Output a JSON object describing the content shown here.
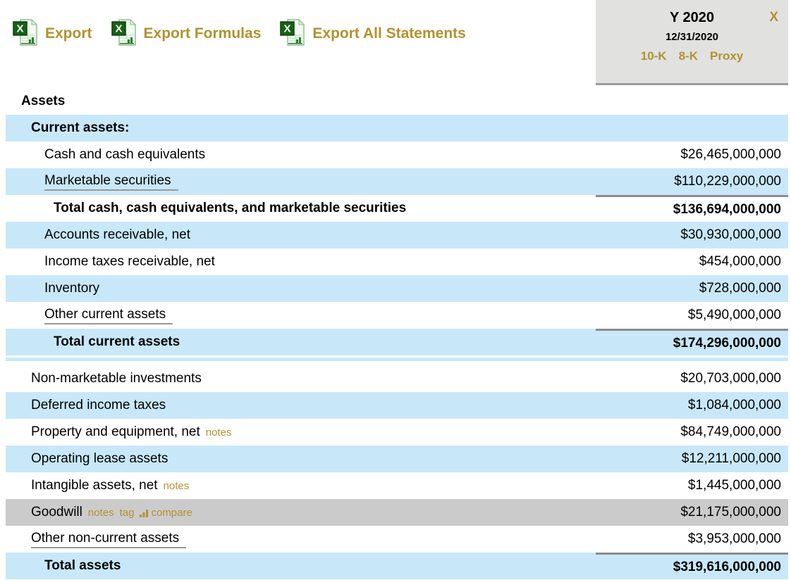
{
  "toolbar": {
    "export": "Export",
    "export_formulas": "Export Formulas",
    "export_all": "Export All Statements"
  },
  "column_header": {
    "period": "Y 2020",
    "close": "X",
    "date": "12/31/2020",
    "filings": {
      "f10k": "10-K",
      "f8k": "8-K",
      "proxy": "Proxy"
    }
  },
  "colors": {
    "stripe_blue": "#C8E8F9",
    "highlight_gray": "#CBCBCB",
    "link_gold": "#B2922F",
    "header_bg": "#E1E1E0",
    "total_border": "#8C8C8C"
  },
  "statement": {
    "rows": [
      {
        "label": "Assets",
        "value": "",
        "bold": true,
        "bg": "white",
        "indent": 0
      },
      {
        "label": "Current assets:",
        "value": "",
        "bold": true,
        "bg": "blue",
        "indent": 1
      },
      {
        "label": "Cash and cash equivalents",
        "value": "$26,465,000,000",
        "bg": "white",
        "indent": 2
      },
      {
        "label": "Marketable securities",
        "value": "$110,229,000,000",
        "bg": "blue",
        "indent": 2,
        "underline": true
      },
      {
        "label": "Total cash, cash equivalents, and marketable securities",
        "value": "$136,694,000,000",
        "bold": true,
        "bg": "white",
        "indent": 3,
        "value_border": true
      },
      {
        "label": "Accounts receivable, net",
        "value": "$30,930,000,000",
        "bg": "blue",
        "indent": 2
      },
      {
        "label": "Income taxes receivable, net",
        "value": "$454,000,000",
        "bg": "white",
        "indent": 2
      },
      {
        "label": "Inventory",
        "value": "$728,000,000",
        "bg": "blue",
        "indent": 2
      },
      {
        "label": "Other current assets",
        "value": "$5,490,000,000",
        "bg": "white",
        "indent": 2,
        "underline": true
      },
      {
        "label": "Total current assets",
        "value": "$174,296,000,000",
        "bold": true,
        "bg": "blue",
        "indent": 3,
        "value_border": true
      },
      {
        "type": "spacer"
      },
      {
        "label": "Non-marketable investments",
        "value": "$20,703,000,000",
        "bg": "white",
        "indent": 1
      },
      {
        "label": "Deferred income taxes",
        "value": "$1,084,000,000",
        "bg": "blue",
        "indent": 1
      },
      {
        "label": "Property and equipment, net",
        "value": "$84,749,000,000",
        "bg": "white",
        "indent": 1,
        "links": [
          {
            "text": "notes"
          }
        ]
      },
      {
        "label": "Operating lease assets",
        "value": "$12,211,000,000",
        "bg": "blue",
        "indent": 1
      },
      {
        "label": "Intangible assets, net",
        "value": "$1,445,000,000",
        "bg": "white",
        "indent": 1,
        "links": [
          {
            "text": "notes"
          }
        ]
      },
      {
        "label": "Goodwill",
        "value": "$21,175,000,000",
        "bg": "gray",
        "indent": 1,
        "links": [
          {
            "text": "notes"
          },
          {
            "text": "tag"
          },
          {
            "text": "compare",
            "icon": "bar-chart-icon"
          }
        ]
      },
      {
        "label": "Other non-current assets",
        "value": "$3,953,000,000",
        "bg": "white",
        "indent": 1,
        "underline": true
      },
      {
        "label": "Total assets",
        "value": "$319,616,000,000",
        "bold": true,
        "bg": "blue",
        "indent": 2,
        "value_border": true
      }
    ]
  }
}
